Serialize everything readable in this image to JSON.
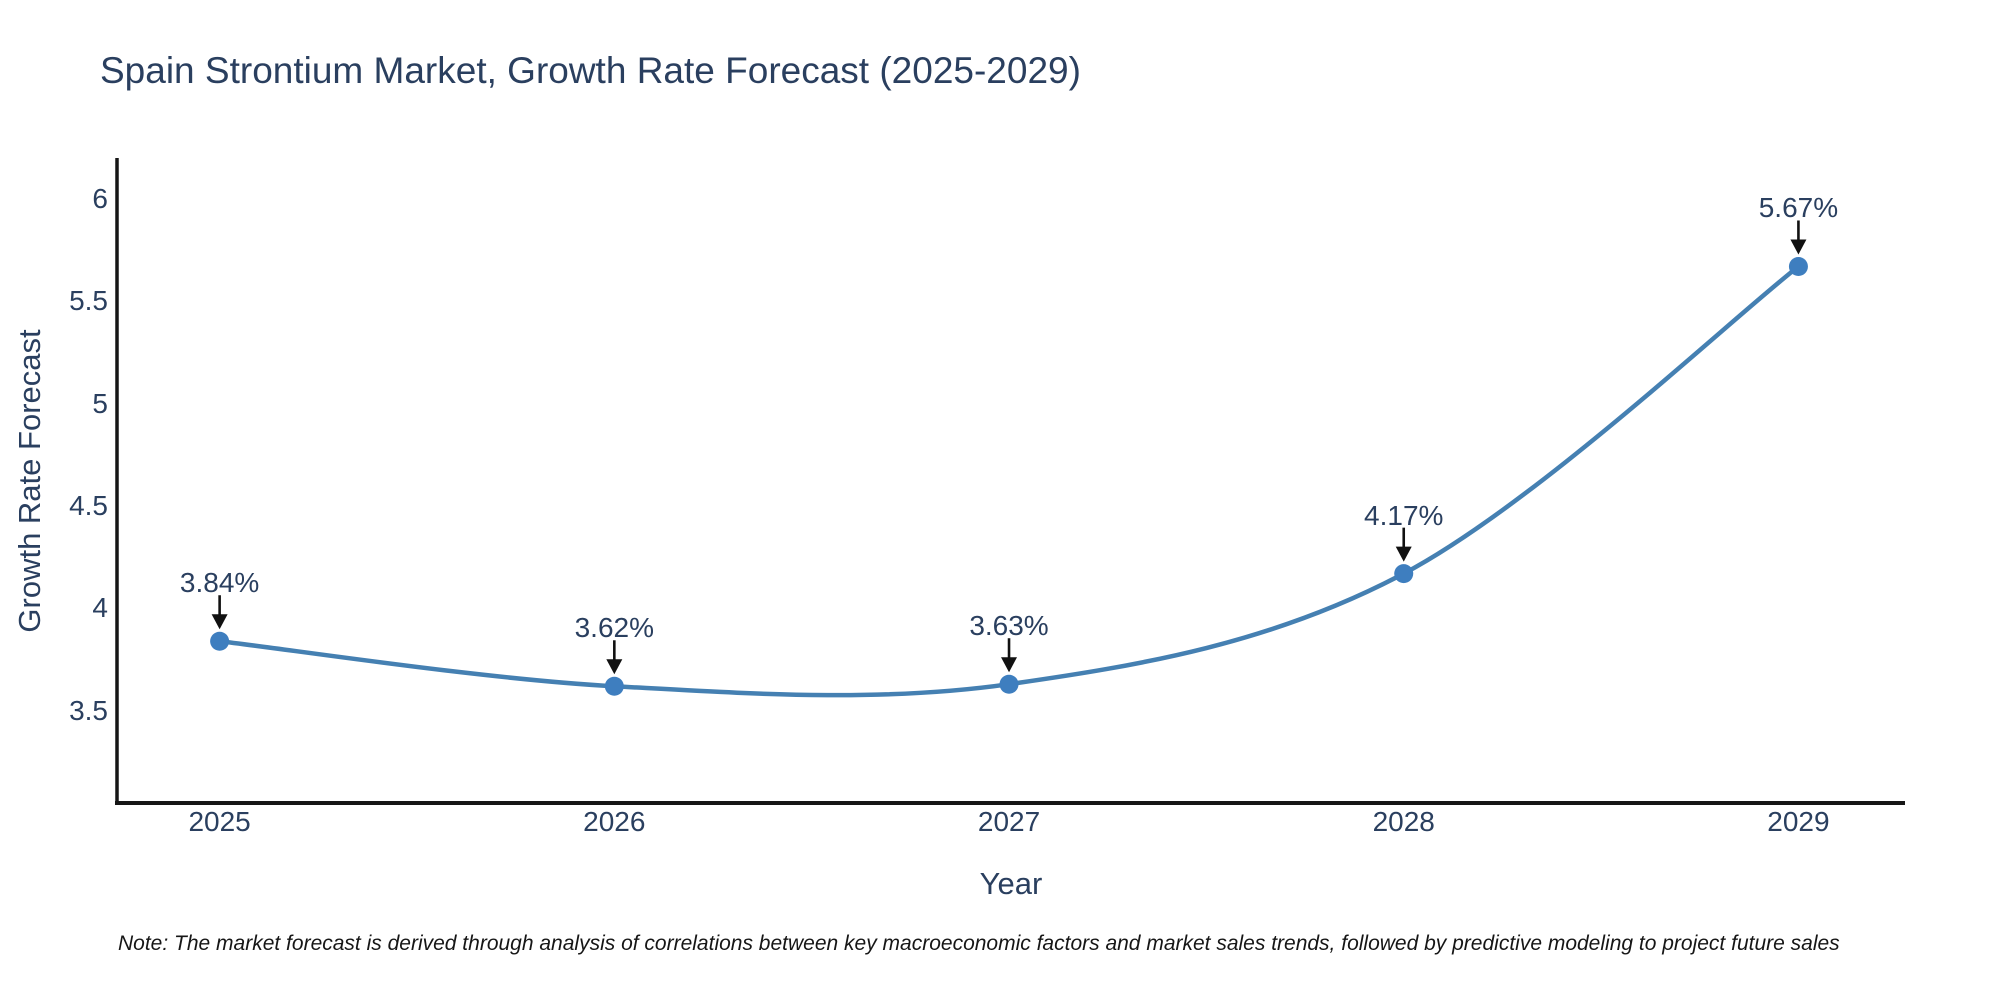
{
  "note": {
    "text": "Note: The market forecast is derived through analysis of correlations between key macroeconomic factors and market sales trends, followed by predictive modeling to project future sales"
  },
  "chart_data": {
    "type": "line",
    "title": "Spain Strontium Market, Growth Rate Forecast (2025-2029)",
    "xlabel": "Year",
    "ylabel": "Growth Rate Forecast",
    "x": [
      2025,
      2026,
      2027,
      2028,
      2029
    ],
    "series": [
      {
        "name": "Growth Rate Forecast",
        "values": [
          3.84,
          3.62,
          3.63,
          4.17,
          5.67
        ]
      }
    ],
    "point_labels": [
      "3.84%",
      "3.62%",
      "3.63%",
      "4.17%",
      "5.67%"
    ],
    "xticks": [
      "2025",
      "2026",
      "2027",
      "2028",
      "2029"
    ],
    "yticks": [
      3.5,
      4,
      4.5,
      5,
      5.5,
      6
    ],
    "xlim": [
      2024.74,
      2029.27
    ],
    "ylim": [
      3.05,
      6.19
    ],
    "line_shape": "spline",
    "grid": false,
    "legend_position": "none",
    "markers": true,
    "annotation_arrows": true,
    "colors": {
      "line": "#4580b2",
      "marker": "#3e7ebf",
      "axis": "#161616",
      "arrow": "#111111",
      "text": "#2a3f5f",
      "note_text": "#161616",
      "background": "#ffffff"
    }
  }
}
